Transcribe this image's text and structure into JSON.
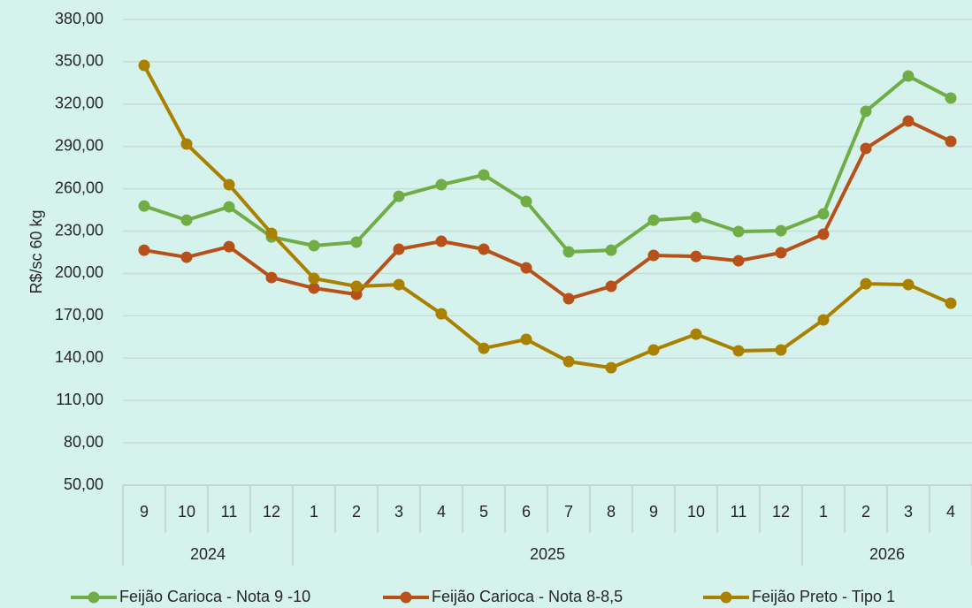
{
  "chart_data": {
    "type": "line",
    "ylabel": "R$/sc 60 kg",
    "groups": [
      {
        "name": "2024",
        "categories": [
          "9",
          "10",
          "11",
          "12"
        ]
      },
      {
        "name": "2025",
        "categories": [
          "1",
          "2",
          "3",
          "4",
          "5",
          "6",
          "7",
          "8",
          "9",
          "10",
          "11",
          "12"
        ]
      },
      {
        "name": "2026",
        "categories": [
          "1",
          "2",
          "3",
          "4"
        ]
      }
    ],
    "series": [
      {
        "name": "Feijão Carioca - Nota 9 -10",
        "color": "#70ad47",
        "values": [
          247.8,
          237.8,
          247.2,
          225.9,
          219.7,
          222.2,
          254.7,
          262.9,
          269.8,
          251.0,
          215.3,
          216.5,
          237.8,
          239.7,
          229.7,
          230.3,
          242.2,
          314.9,
          339.9,
          324.3
        ]
      },
      {
        "name": "Feijão Carioca - Nota 8-8,5",
        "color": "#b8501a",
        "values": [
          216.5,
          211.5,
          219.0,
          197.1,
          189.6,
          185.2,
          217.2,
          222.8,
          217.2,
          204.0,
          182.1,
          190.9,
          212.8,
          212.1,
          209.0,
          214.7,
          227.8,
          288.6,
          308.0,
          293.6
        ]
      },
      {
        "name": "Feijão Preto - Tipo 1",
        "color": "#a98000",
        "values": [
          347.4,
          291.7,
          262.9,
          228.4,
          196.5,
          190.9,
          192.1,
          171.4,
          147.0,
          153.3,
          137.6,
          133.2,
          145.8,
          157.0,
          145.2,
          145.8,
          167.1,
          192.7,
          192.1,
          178.9
        ]
      }
    ],
    "ylim": [
      50,
      380
    ],
    "yticks": [
      {
        "value": 50,
        "label": "50,00"
      },
      {
        "value": 80,
        "label": "80,00"
      },
      {
        "value": 110,
        "label": "110,00"
      },
      {
        "value": 140,
        "label": "140,00"
      },
      {
        "value": 170,
        "label": "170,00"
      },
      {
        "value": 200,
        "label": "200,00"
      },
      {
        "value": 230,
        "label": "230,00"
      },
      {
        "value": 260,
        "label": "260,00"
      },
      {
        "value": 290,
        "label": "290,00"
      },
      {
        "value": 320,
        "label": "320,00"
      },
      {
        "value": 350,
        "label": "350,00"
      },
      {
        "value": 380,
        "label": "380,00"
      }
    ],
    "grid": true,
    "legend": "bottom"
  }
}
